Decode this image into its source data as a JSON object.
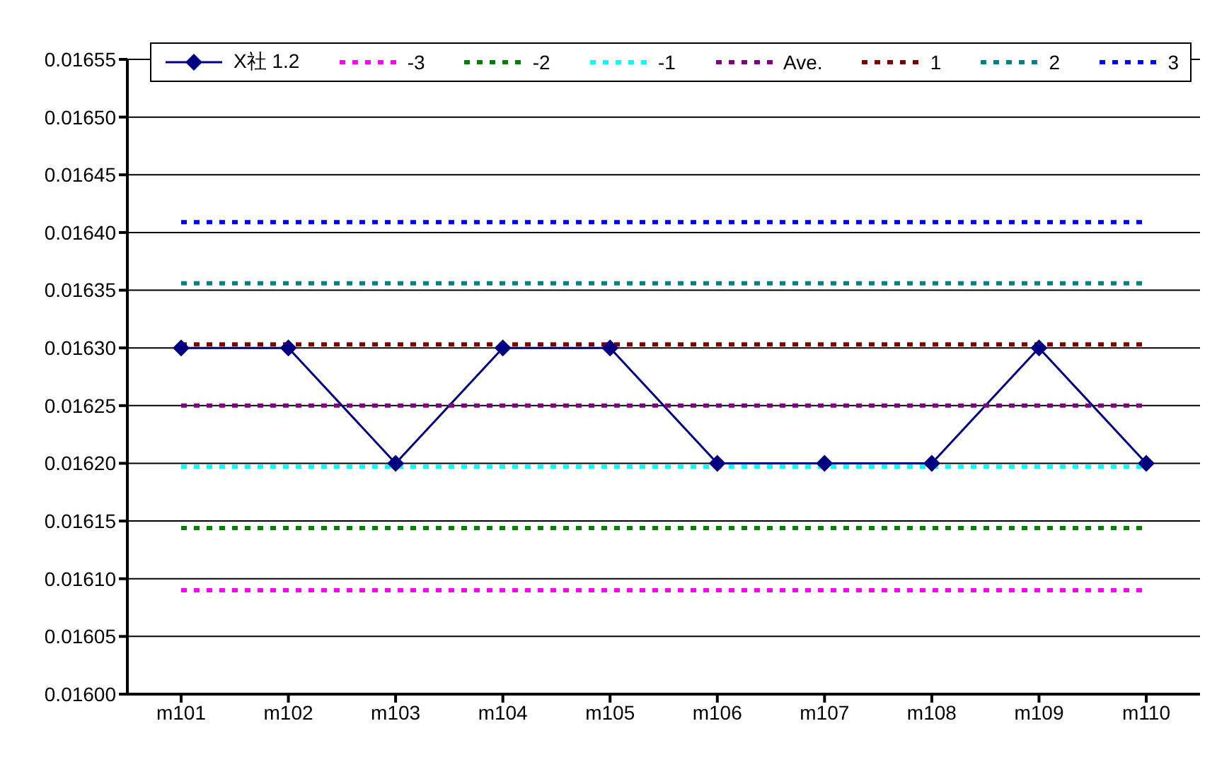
{
  "chart_data": {
    "type": "line",
    "categories": [
      "m101",
      "m102",
      "m103",
      "m104",
      "m105",
      "m106",
      "m107",
      "m108",
      "m109",
      "m110"
    ],
    "ylim": [
      0.016,
      0.01655
    ],
    "yticks": [
      {
        "value": 0.016,
        "label": "0.01600"
      },
      {
        "value": 0.01605,
        "label": "0.01605"
      },
      {
        "value": 0.0161,
        "label": "0.01610"
      },
      {
        "value": 0.01615,
        "label": "0.01615"
      },
      {
        "value": 0.0162,
        "label": "0.01620"
      },
      {
        "value": 0.01625,
        "label": "0.01625"
      },
      {
        "value": 0.0163,
        "label": "0.01630"
      },
      {
        "value": 0.01635,
        "label": "0.01635"
      },
      {
        "value": 0.0164,
        "label": "0.01640"
      },
      {
        "value": 0.01645,
        "label": "0.01645"
      },
      {
        "value": 0.0165,
        "label": "0.01650"
      },
      {
        "value": 0.01655,
        "label": "0.01655"
      }
    ],
    "grid": "y",
    "legend": "top",
    "series": [
      {
        "name": "X社 1.2",
        "color": "#000080",
        "marker": "diamond",
        "line_style": "solid",
        "values": [
          0.0163,
          0.0163,
          0.0162,
          0.0163,
          0.0163,
          0.0162,
          0.0162,
          0.0162,
          0.0163,
          0.0162
        ]
      },
      {
        "name": "-3",
        "color": "#ff00ff",
        "marker": "none",
        "line_style": "dotted",
        "values": [
          0.01609,
          0.01609,
          0.01609,
          0.01609,
          0.01609,
          0.01609,
          0.01609,
          0.01609,
          0.01609,
          0.01609
        ]
      },
      {
        "name": "-2",
        "color": "#008000",
        "marker": "none",
        "line_style": "dotted",
        "values": [
          0.016144,
          0.016144,
          0.016144,
          0.016144,
          0.016144,
          0.016144,
          0.016144,
          0.016144,
          0.016144,
          0.016144
        ]
      },
      {
        "name": "-1",
        "color": "#00ffff",
        "marker": "none",
        "line_style": "dotted",
        "values": [
          0.016197,
          0.016197,
          0.016197,
          0.016197,
          0.016197,
          0.016197,
          0.016197,
          0.016197,
          0.016197,
          0.016197
        ]
      },
      {
        "name": "Ave.",
        "color": "#800080",
        "marker": "none",
        "line_style": "dotted",
        "values": [
          0.01625,
          0.01625,
          0.01625,
          0.01625,
          0.01625,
          0.01625,
          0.01625,
          0.01625,
          0.01625,
          0.01625
        ]
      },
      {
        "name": "1",
        "color": "#800000",
        "marker": "none",
        "line_style": "dotted",
        "values": [
          0.016303,
          0.016303,
          0.016303,
          0.016303,
          0.016303,
          0.016303,
          0.016303,
          0.016303,
          0.016303,
          0.016303
        ]
      },
      {
        "name": "2",
        "color": "#008080",
        "marker": "none",
        "line_style": "dotted",
        "values": [
          0.016356,
          0.016356,
          0.016356,
          0.016356,
          0.016356,
          0.016356,
          0.016356,
          0.016356,
          0.016356,
          0.016356
        ]
      },
      {
        "name": "3",
        "color": "#0000ff",
        "marker": "none",
        "line_style": "dotted",
        "values": [
          0.016409,
          0.016409,
          0.016409,
          0.016409,
          0.016409,
          0.016409,
          0.016409,
          0.016409,
          0.016409,
          0.016409
        ]
      }
    ]
  }
}
